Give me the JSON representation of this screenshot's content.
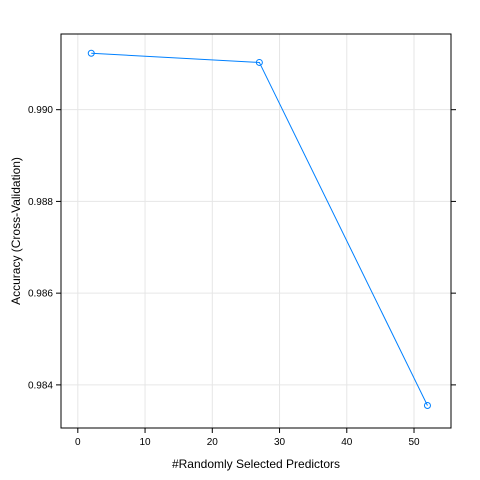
{
  "chart_data": {
    "type": "line",
    "title": "",
    "xlabel": "#Randomly Selected Predictors",
    "ylabel": "Accuracy (Cross-Validation)",
    "xlim": [
      -2.5,
      55.5
    ],
    "ylim": [
      0.98306,
      0.99165
    ],
    "xticks": [
      0,
      10,
      20,
      30,
      40,
      50
    ],
    "xtick_labels": [
      "0",
      "10",
      "20",
      "30",
      "40",
      "50"
    ],
    "yticks": [
      0.984,
      0.986,
      0.988,
      0.99
    ],
    "ytick_labels": [
      "0.984",
      "0.986",
      "0.988",
      "0.990"
    ],
    "grid": true,
    "series": [
      {
        "x": [
          2,
          27,
          52
        ],
        "y": [
          0.99123,
          0.99103,
          0.98355
        ],
        "color": "#0080ff",
        "marker": "open-circle"
      }
    ]
  }
}
